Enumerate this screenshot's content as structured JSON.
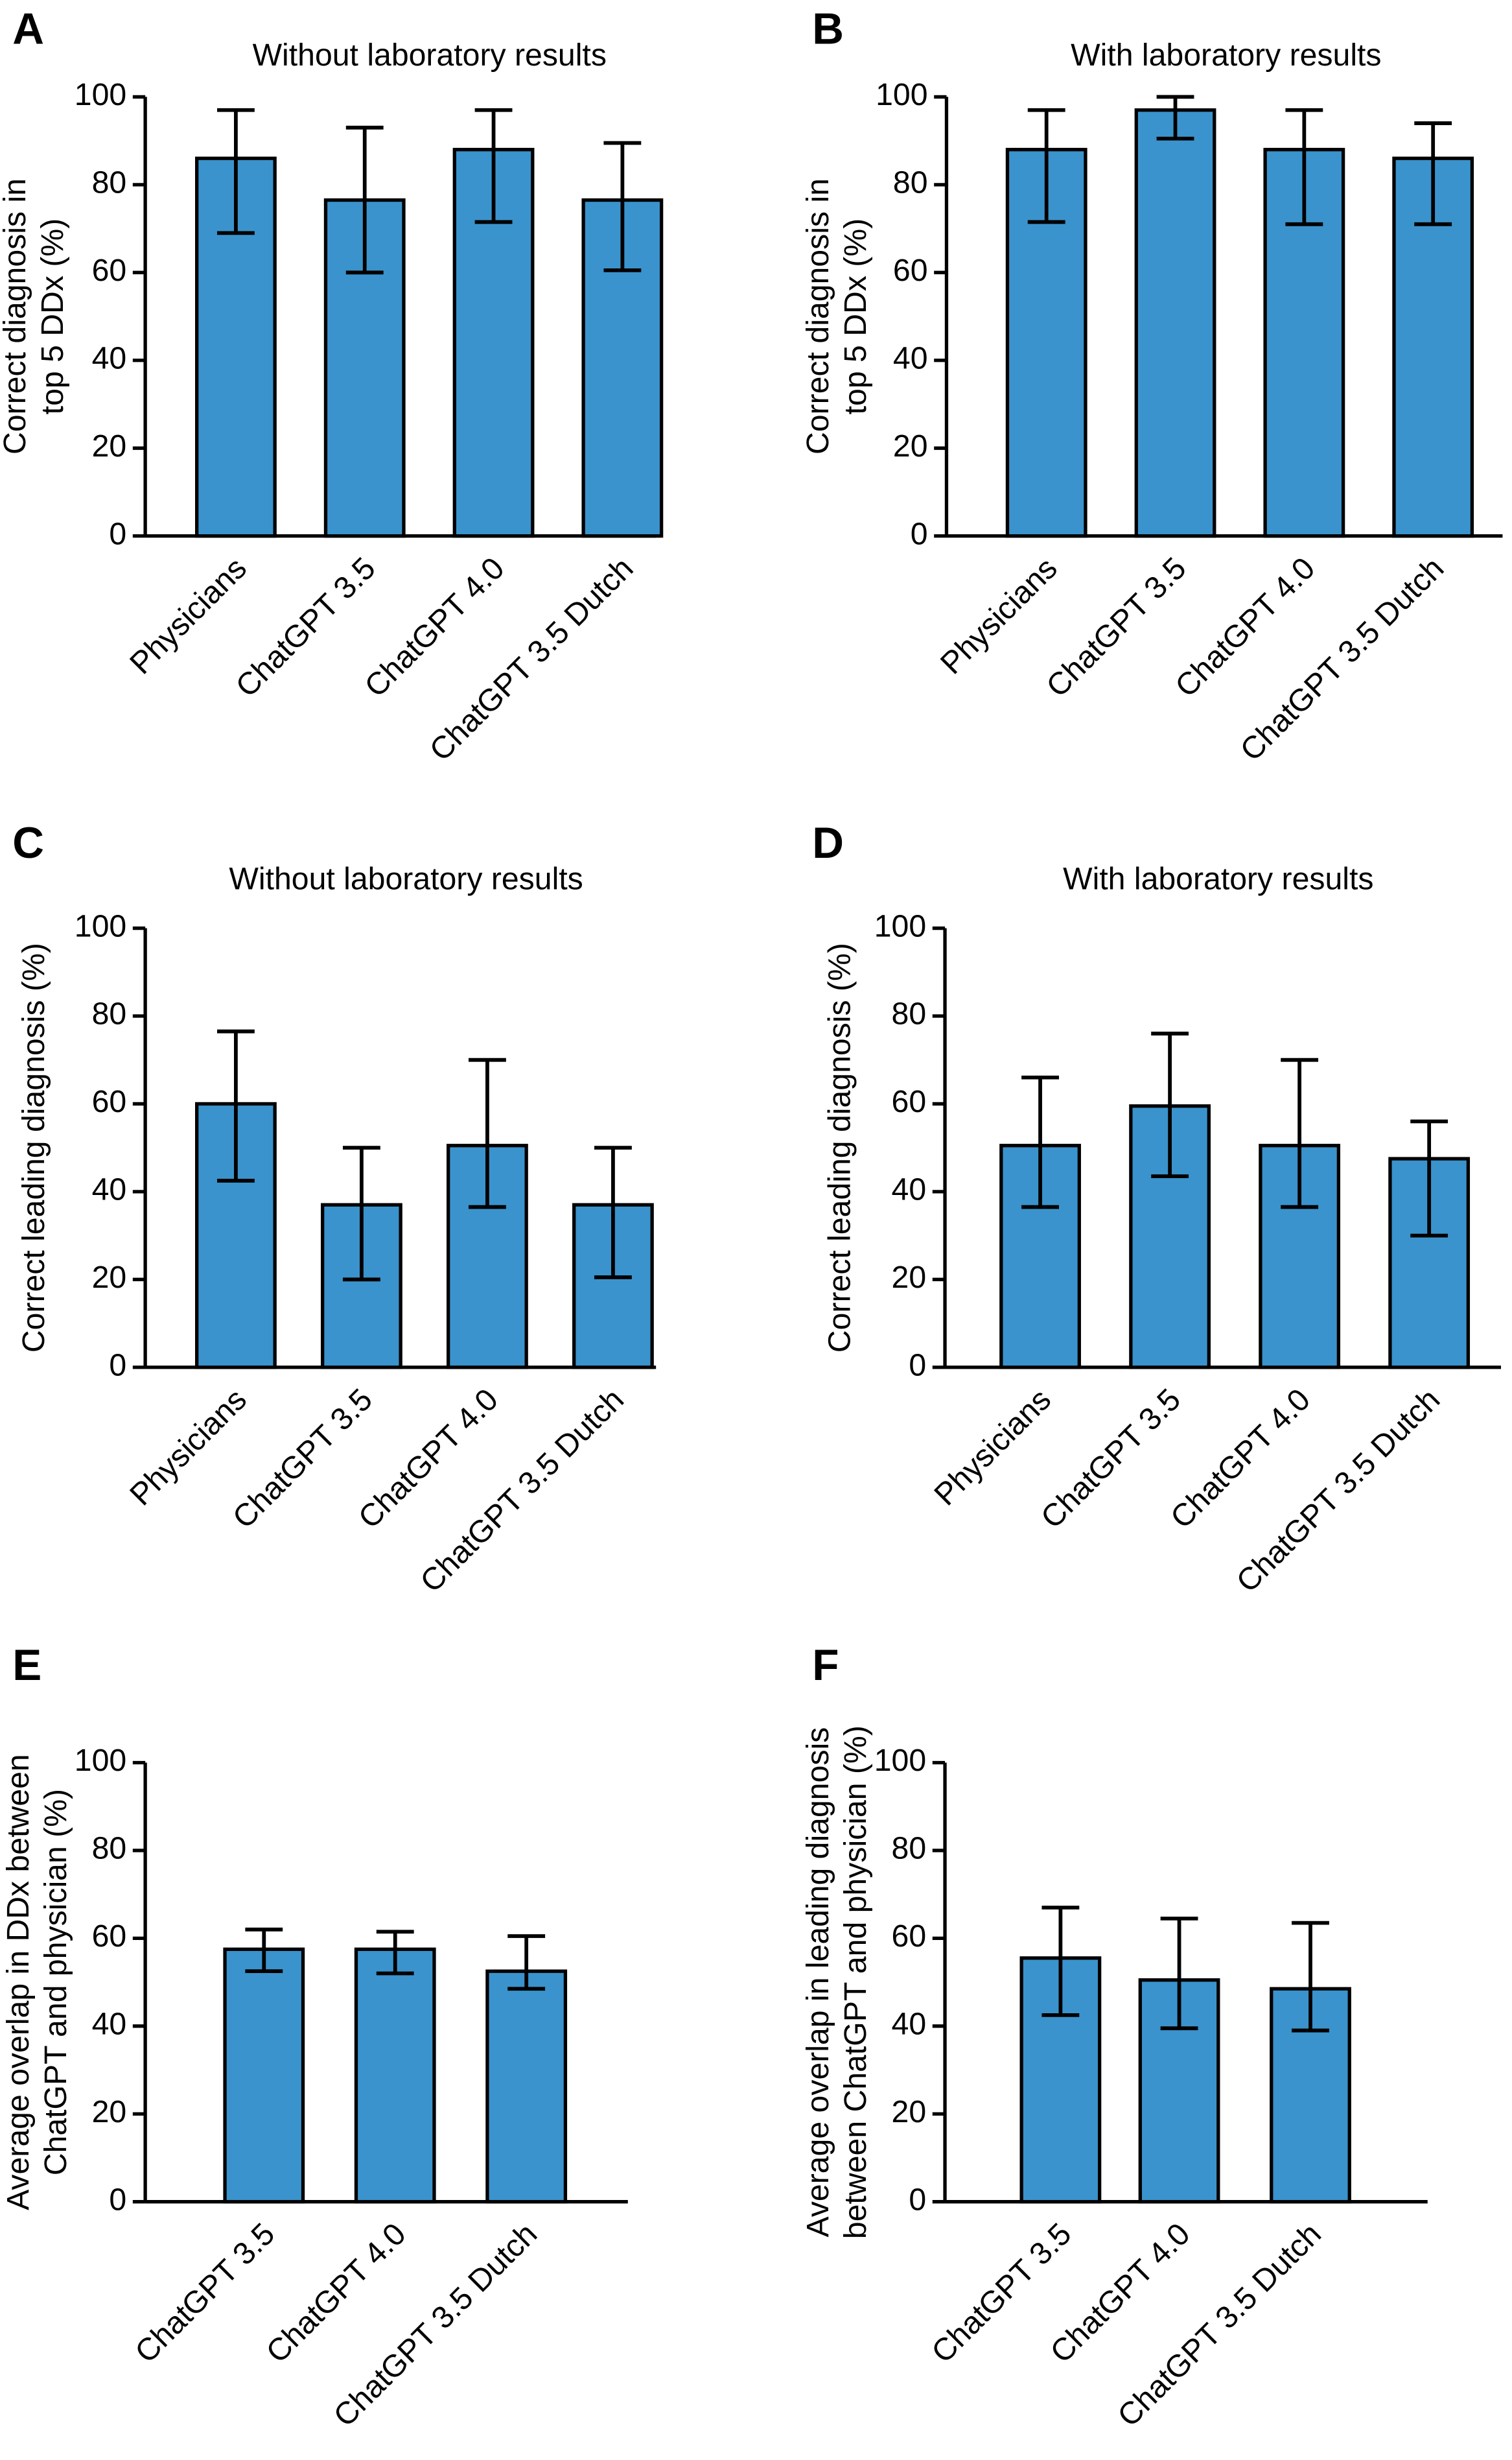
{
  "figure": {
    "bar_color": "#3a93cc",
    "stroke_color": "#000000"
  },
  "chart_data": [
    {
      "panel": "A",
      "type": "bar",
      "title": "Without laboratory results",
      "ylabel": [
        "Correct diagnosis in",
        "top 5 DDx (%)"
      ],
      "xlabel": "",
      "ylim": [
        0,
        100
      ],
      "yticks": [
        0,
        20,
        40,
        60,
        80,
        100
      ],
      "grid": false,
      "categories": [
        "Physicians",
        "ChatGPT 3.5",
        "ChatGPT 4.0",
        "ChatGPT 3.5 Dutch"
      ],
      "values": [
        86,
        76.5,
        88,
        76.5
      ],
      "err_low": [
        69,
        60,
        71.5,
        60.5
      ],
      "err_high": [
        97,
        93,
        97,
        89.5
      ]
    },
    {
      "panel": "B",
      "type": "bar",
      "title": "With laboratory results",
      "ylabel": [
        "Correct diagnosis in",
        "top 5 DDx (%)"
      ],
      "xlabel": "",
      "ylim": [
        0,
        100
      ],
      "yticks": [
        0,
        20,
        40,
        60,
        80,
        100
      ],
      "grid": false,
      "categories": [
        "Physicians",
        "ChatGPT 3.5",
        "ChatGPT 4.0",
        "ChatGPT 3.5 Dutch"
      ],
      "values": [
        88,
        97,
        88,
        86
      ],
      "err_low": [
        71.5,
        90.5,
        71,
        71
      ],
      "err_high": [
        97,
        100,
        97,
        94
      ]
    },
    {
      "panel": "C",
      "type": "bar",
      "title": "Without laboratory results",
      "ylabel": [
        "Correct leading diagnosis (%)"
      ],
      "xlabel": "",
      "ylim": [
        0,
        100
      ],
      "yticks": [
        0,
        20,
        40,
        60,
        80,
        100
      ],
      "grid": false,
      "categories": [
        "Physicians",
        "ChatGPT 3.5",
        "ChatGPT 4.0",
        "ChatGPT 3.5 Dutch"
      ],
      "values": [
        60,
        37,
        50.5,
        37
      ],
      "err_low": [
        42.5,
        20,
        36.5,
        20.5
      ],
      "err_high": [
        76.5,
        50,
        70,
        50
      ]
    },
    {
      "panel": "D",
      "type": "bar",
      "title": "With laboratory results",
      "ylabel": [
        "Correct leading diagnosis (%)"
      ],
      "xlabel": "",
      "ylim": [
        0,
        100
      ],
      "yticks": [
        0,
        20,
        40,
        60,
        80,
        100
      ],
      "grid": false,
      "categories": [
        "Physicians",
        "ChatGPT 3.5",
        "ChatGPT 4.0",
        "ChatGPT 3.5 Dutch"
      ],
      "values": [
        50.5,
        59.5,
        50.5,
        47.5
      ],
      "err_low": [
        36.5,
        43.5,
        36.5,
        30
      ],
      "err_high": [
        66,
        76,
        70,
        56
      ]
    },
    {
      "panel": "E",
      "type": "bar",
      "title": "",
      "ylabel": [
        "Average overlap in DDx between",
        "ChatGPT and physician (%)"
      ],
      "xlabel": "",
      "ylim": [
        0,
        100
      ],
      "yticks": [
        0,
        20,
        40,
        60,
        80,
        100
      ],
      "grid": false,
      "categories": [
        "ChatGPT 3.5",
        "ChatGPT 4.0",
        "ChatGPT 3.5 Dutch"
      ],
      "values": [
        57.5,
        57.5,
        52.5
      ],
      "err_low": [
        52.5,
        52,
        48.5
      ],
      "err_high": [
        62,
        61.5,
        60.5
      ]
    },
    {
      "panel": "F",
      "type": "bar",
      "title": "",
      "ylabel": [
        "Average overlap in leading diagnosis",
        "between ChatGPT and physician (%)"
      ],
      "xlabel": "",
      "ylim": [
        0,
        100
      ],
      "yticks": [
        0,
        20,
        40,
        60,
        80,
        100
      ],
      "grid": false,
      "categories": [
        "ChatGPT 3.5",
        "ChatGPT 4.0",
        "ChatGPT 3.5 Dutch"
      ],
      "values": [
        55.5,
        50.5,
        48.5
      ],
      "err_low": [
        42.5,
        39.5,
        39
      ],
      "err_high": [
        67,
        64.5,
        63.5
      ]
    }
  ]
}
